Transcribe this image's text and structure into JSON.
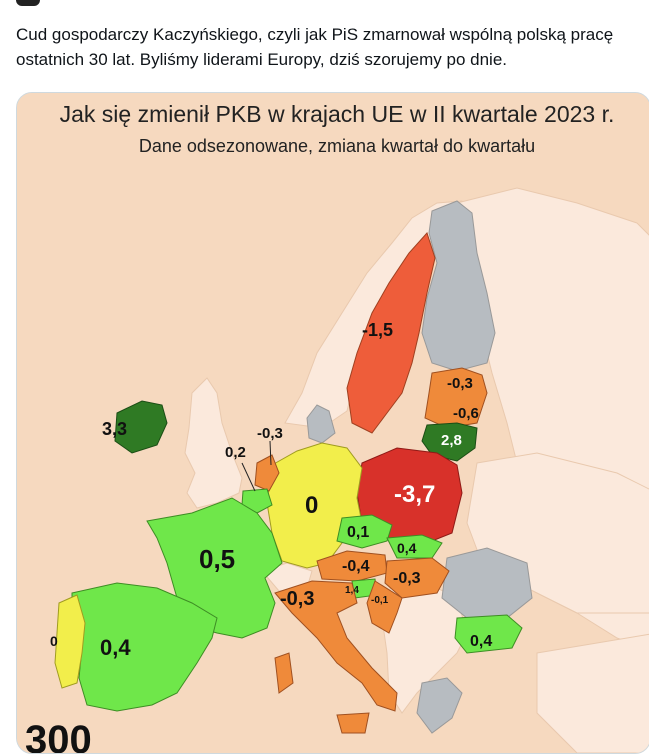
{
  "tweet": {
    "text": "Cud gospodarczy Kaczyńskiego, czyli jak PiS zmarnował wspólną polską pracę ostatnich 30 lat. Byliśmy liderami Europy, dziś szorujemy po dnie."
  },
  "map": {
    "title": "Jak się zmienił PKB w krajach UE w II kwartale 2023 r.",
    "subtitle": "Dane odsezonowane, zmiana kwartał do kwartału",
    "logo_text": "300",
    "colors": {
      "sea": "#f6d9bf",
      "non_eu": "#fbe9dc",
      "no_data": "#b7bcc1",
      "strong_decline": "#d8312a",
      "decline": "#ee5d3a",
      "slight_decline": "#ef8a3a",
      "flat": "#f2ee4b",
      "growth": "#6fe74a",
      "strong_growth": "#2f7a24"
    },
    "countries": [
      {
        "name": "Irlandia",
        "value": "3,3"
      },
      {
        "name": "Belgia",
        "value": "0,2"
      },
      {
        "name": "Holandia",
        "value": "-0,3"
      },
      {
        "name": "Francja",
        "value": "0,5"
      },
      {
        "name": "Portugalia",
        "value": "0"
      },
      {
        "name": "Hiszpania",
        "value": "0,4"
      },
      {
        "name": "Niemcy",
        "value": "0"
      },
      {
        "name": "Szwecja",
        "value": "-1,5"
      },
      {
        "name": "Łotwa",
        "value": "-0,3"
      },
      {
        "name": "Estonia/Łotwa",
        "value": "-0,6"
      },
      {
        "name": "Litwa",
        "value": "2,8"
      },
      {
        "name": "Polska",
        "value": "-3,7"
      },
      {
        "name": "Czechy",
        "value": "0,1"
      },
      {
        "name": "Słowacja",
        "value": "0,4"
      },
      {
        "name": "Austria",
        "value": "-0,4"
      },
      {
        "name": "Węgry",
        "value": "-0,3"
      },
      {
        "name": "Słowenia",
        "value": "1,4"
      },
      {
        "name": "Chorwacja",
        "value": "-0,1"
      },
      {
        "name": "Włochy",
        "value": "-0,3"
      },
      {
        "name": "Bułgaria",
        "value": "0,4"
      }
    ]
  }
}
